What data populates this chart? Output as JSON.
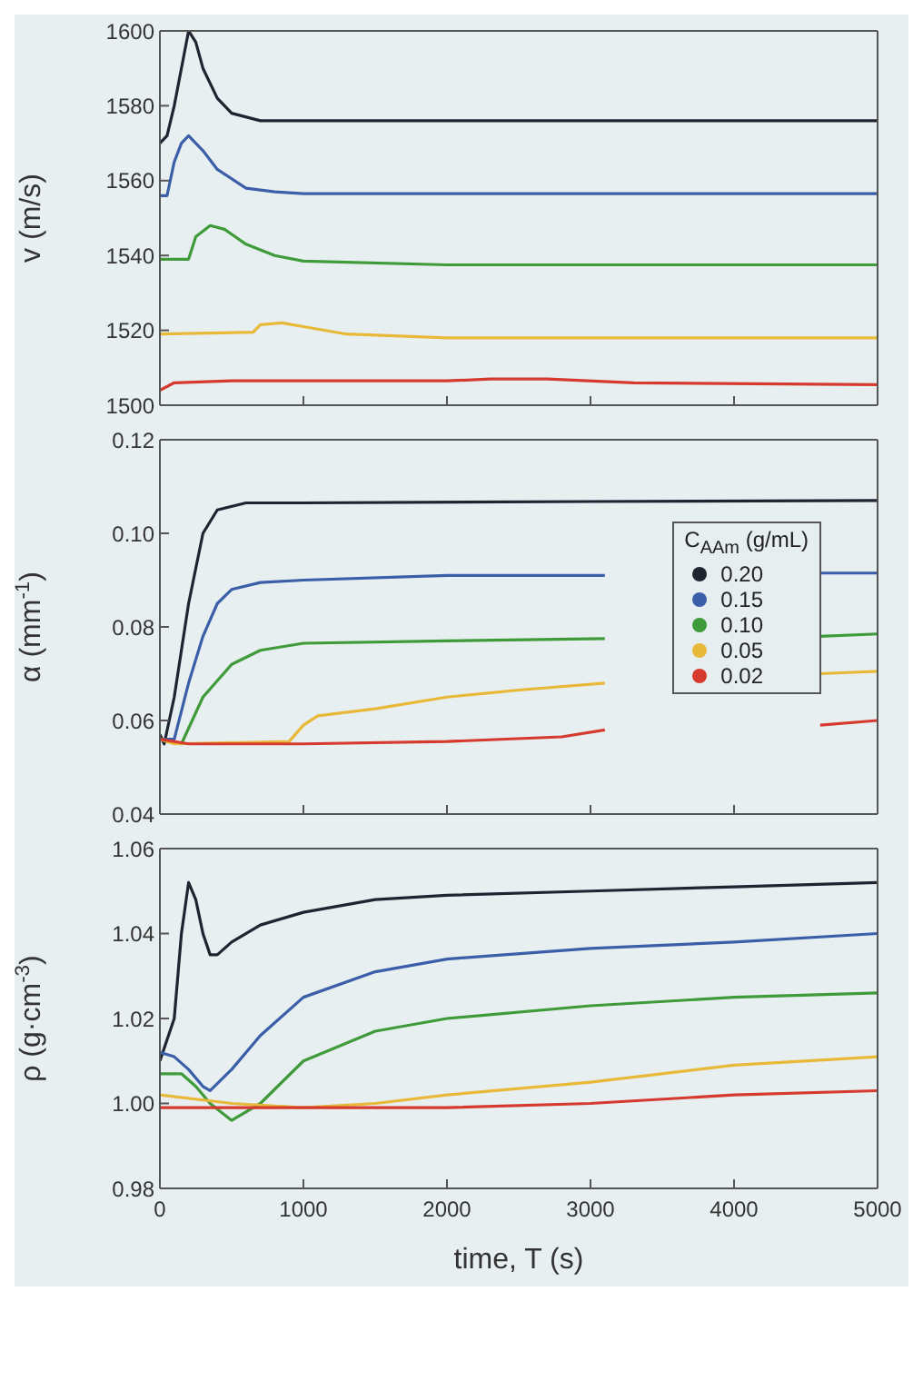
{
  "chart_data": [
    {
      "type": "line",
      "ylabel": "v (m/s)",
      "xlim": [
        0,
        5000
      ],
      "xticks": [
        0,
        1000,
        2000,
        3000,
        4000,
        5000
      ],
      "ylim": [
        1500,
        1600
      ],
      "yticks": [
        1500,
        1520,
        1540,
        1560,
        1580,
        1600
      ],
      "tick_labels": "y",
      "legend": false,
      "series": [
        {
          "color": "#1f2430",
          "x": [
            0,
            50,
            100,
            150,
            200,
            250,
            300,
            400,
            500,
            700,
            1000,
            5000
          ],
          "values": [
            1570,
            1572,
            1580,
            1590,
            1600,
            1597,
            1590,
            1582,
            1578,
            1576,
            1576,
            1576
          ]
        },
        {
          "color": "#3b5ea8",
          "x": [
            0,
            50,
            100,
            150,
            200,
            300,
            400,
            600,
            800,
            1000,
            5000
          ],
          "values": [
            1556,
            1556,
            1565,
            1570,
            1572,
            1568,
            1563,
            1558,
            1557,
            1556.5,
            1556.5
          ]
        },
        {
          "color": "#3f9a3a",
          "x": [
            0,
            200,
            250,
            350,
            450,
            600,
            800,
            1000,
            2000,
            5000
          ],
          "values": [
            1539,
            1539,
            1545,
            1548,
            1547,
            1543,
            1540,
            1538.5,
            1537.5,
            1537.5
          ]
        },
        {
          "color": "#e8b838",
          "x": [
            0,
            650,
            700,
            850,
            1000,
            1300,
            2000,
            5000
          ],
          "values": [
            1519,
            1519.5,
            1521.5,
            1522,
            1521,
            1519,
            1518,
            1518
          ]
        },
        {
          "color": "#d63a2e",
          "x": [
            0,
            100,
            500,
            2000,
            2300,
            2700,
            3300,
            5000
          ],
          "values": [
            1504,
            1506,
            1506.5,
            1506.5,
            1507,
            1507,
            1506,
            1505.5
          ]
        }
      ]
    },
    {
      "type": "line",
      "ylabel": "α (mm$^{-1}$)",
      "xlim": [
        0,
        5000
      ],
      "xticks": [
        0,
        1000,
        2000,
        3000,
        4000,
        5000
      ],
      "ylim": [
        0.04,
        0.12
      ],
      "yticks": [
        0.04,
        0.06,
        0.08,
        {
          "value": 0.1,
          "label": "0.10"
        },
        0.12
      ],
      "tick_labels": "y",
      "legend": "right",
      "legend_title": "C$_{AAm}$ (g/mL)",
      "series": [
        {
          "name": "0.20",
          "color": "#1f2430",
          "x": [
            0,
            30,
            100,
            200,
            300,
            400,
            600,
            1000,
            3000,
            5000
          ],
          "values": [
            0.057,
            0.055,
            0.065,
            0.085,
            0.1,
            0.105,
            0.1065,
            0.1065,
            0.1068,
            0.107
          ]
        },
        {
          "name": "0.15",
          "color": "#3b5ea8",
          "x": [
            0,
            100,
            200,
            300,
            400,
            500,
            700,
            1000,
            2000,
            3100,
            3800,
            4600,
            5000
          ],
          "values": [
            0.056,
            0.056,
            0.068,
            0.078,
            0.085,
            0.088,
            0.0895,
            0.09,
            0.091,
            0.091,
            null,
            0.0915,
            0.0915
          ]
        },
        {
          "name": "0.10",
          "color": "#3f9a3a",
          "x": [
            0,
            150,
            300,
            500,
            700,
            1000,
            2000,
            3100,
            3800,
            4600,
            5000
          ],
          "values": [
            0.056,
            0.055,
            0.065,
            0.072,
            0.075,
            0.0765,
            0.077,
            0.0775,
            null,
            0.078,
            0.0785
          ]
        },
        {
          "name": "0.05",
          "color": "#e8b838",
          "x": [
            0,
            100,
            900,
            1000,
            1100,
            1500,
            2000,
            2500,
            3100,
            3800,
            4600,
            5000
          ],
          "values": [
            0.056,
            0.055,
            0.0555,
            0.059,
            0.061,
            0.0625,
            0.065,
            0.0665,
            0.068,
            null,
            0.07,
            0.0705
          ]
        },
        {
          "name": "0.02",
          "color": "#d63a2e",
          "x": [
            0,
            200,
            1000,
            2000,
            2800,
            3100,
            3800,
            4600,
            5000
          ],
          "values": [
            0.056,
            0.055,
            0.055,
            0.0555,
            0.0565,
            0.058,
            null,
            0.059,
            0.06
          ]
        }
      ]
    },
    {
      "type": "line",
      "ylabel": "ρ (g·cm$^{-3}$)",
      "xlabel": "time, T (s)",
      "xlim": [
        0,
        5000
      ],
      "xticks": [
        0,
        1000,
        2000,
        3000,
        4000,
        5000
      ],
      "ylim": [
        0.98,
        1.06
      ],
      "yticks": [
        0.98,
        {
          "value": 1,
          "label": "1.00"
        },
        1.02,
        1.04,
        1.06
      ],
      "legend": false,
      "series": [
        {
          "color": "#1f2430",
          "x": [
            0,
            100,
            150,
            200,
            250,
            300,
            350,
            400,
            500,
            700,
            1000,
            1500,
            2000,
            3000,
            4000,
            5000
          ],
          "values": [
            1.01,
            1.02,
            1.04,
            1.052,
            1.048,
            1.04,
            1.035,
            1.035,
            1.038,
            1.042,
            1.045,
            1.048,
            1.049,
            1.05,
            1.051,
            1.052
          ]
        },
        {
          "color": "#3b5ea8",
          "x": [
            0,
            100,
            200,
            300,
            350,
            500,
            700,
            1000,
            1500,
            2000,
            3000,
            4000,
            5000
          ],
          "values": [
            1.012,
            1.011,
            1.008,
            1.004,
            1.003,
            1.008,
            1.016,
            1.025,
            1.031,
            1.034,
            1.0365,
            1.038,
            1.04
          ]
        },
        {
          "color": "#3f9a3a",
          "x": [
            0,
            150,
            250,
            350,
            500,
            700,
            1000,
            1500,
            2000,
            3000,
            4000,
            5000
          ],
          "values": [
            1.007,
            1.007,
            1.004,
            1.0,
            0.996,
            1.0,
            1.01,
            1.017,
            1.02,
            1.023,
            1.025,
            1.026
          ]
        },
        {
          "color": "#e8b838",
          "x": [
            0,
            500,
            1000,
            1500,
            2000,
            3000,
            4000,
            5000
          ],
          "values": [
            1.002,
            1.0,
            0.999,
            1.0,
            1.002,
            1.005,
            1.009,
            1.011
          ]
        },
        {
          "color": "#d63a2e",
          "x": [
            0,
            1000,
            2000,
            3000,
            4000,
            5000
          ],
          "values": [
            0.999,
            0.999,
            0.999,
            1.0,
            1.002,
            1.003
          ]
        }
      ]
    }
  ]
}
